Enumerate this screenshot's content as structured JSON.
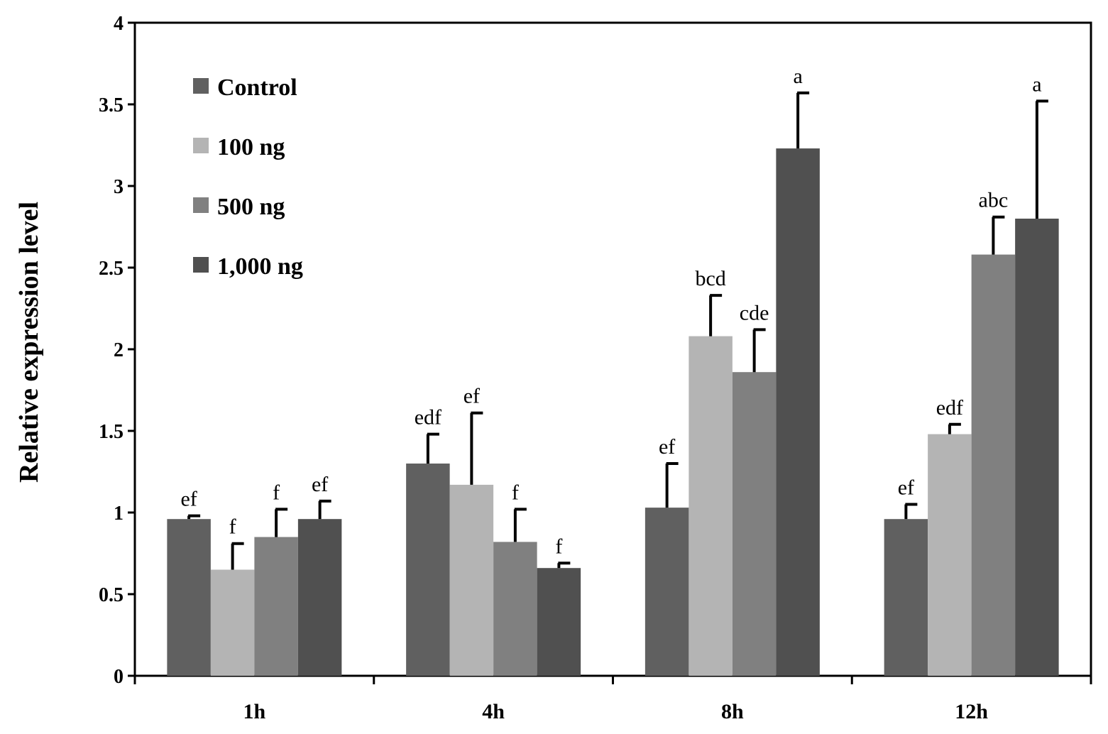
{
  "chart_data": {
    "type": "bar",
    "title": "",
    "xlabel": "",
    "ylabel": "Relative expression level",
    "ylim": [
      0,
      4
    ],
    "yticks": [
      "0",
      "0.5",
      "1",
      "1.5",
      "2",
      "2.5",
      "3",
      "3.5",
      "4"
    ],
    "categories": [
      "1h",
      "4h",
      "8h",
      "12h"
    ],
    "legend_position": "top-left",
    "series": [
      {
        "name": "Control",
        "color": "#606060",
        "values": [
          0.96,
          1.3,
          1.03,
          0.96
        ],
        "errors": [
          0.02,
          0.18,
          0.27,
          0.09
        ],
        "labels": [
          "ef",
          "edf",
          "ef",
          "ef"
        ]
      },
      {
        "name": "100 ng",
        "color": "#b4b4b4",
        "values": [
          0.65,
          1.17,
          2.08,
          1.48
        ],
        "errors": [
          0.16,
          0.44,
          0.25,
          0.06
        ],
        "labels": [
          "f",
          "ef",
          "bcd",
          "edf"
        ]
      },
      {
        "name": "500 ng",
        "color": "#808080",
        "values": [
          0.85,
          0.82,
          1.86,
          2.58
        ],
        "errors": [
          0.17,
          0.2,
          0.26,
          0.23
        ],
        "labels": [
          "f",
          "f",
          "cde",
          "abc"
        ]
      },
      {
        "name": "1,000 ng",
        "color": "#505050",
        "values": [
          0.96,
          0.66,
          3.23,
          2.8
        ],
        "errors": [
          0.11,
          0.03,
          0.34,
          0.72
        ],
        "labels": [
          "ef",
          "f",
          "a",
          "a"
        ]
      }
    ]
  }
}
